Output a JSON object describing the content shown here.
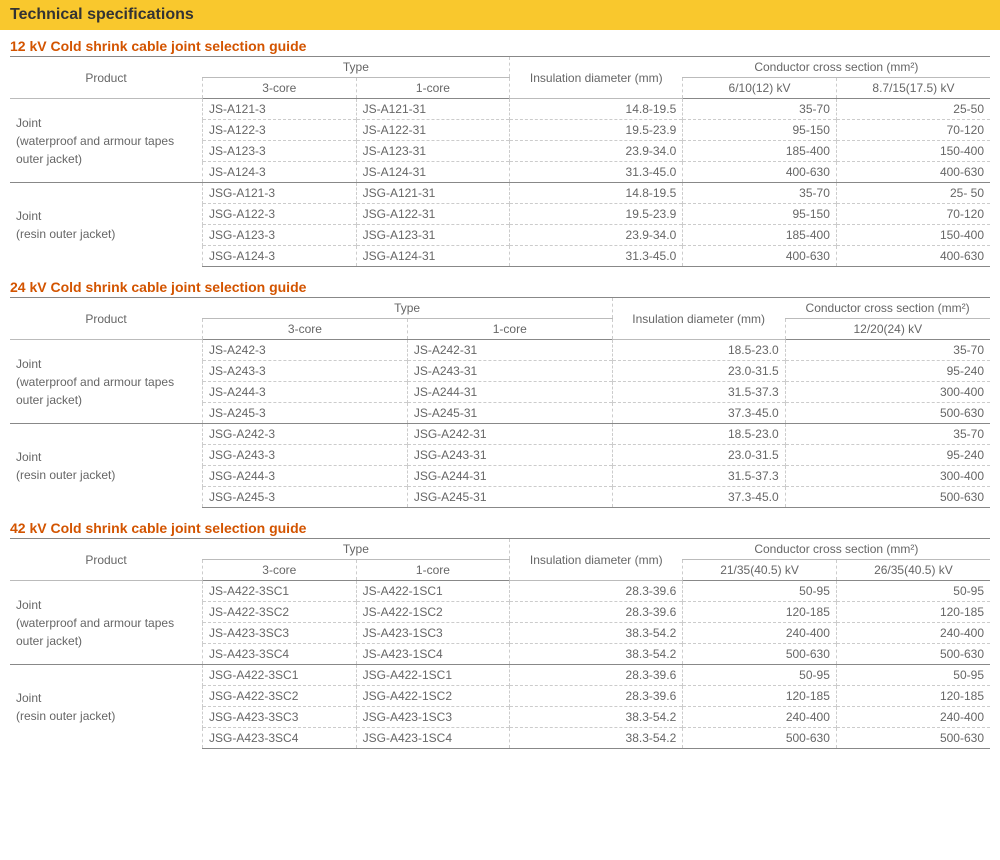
{
  "banner": "Technical specifications",
  "headers": {
    "product": "Product",
    "type": "Type",
    "core3": "3-core",
    "core1": "1-core",
    "insulation": "Insulation diameter (mm)",
    "cross": "Conductor cross section (mm²)"
  },
  "products": {
    "waterproof": "Joint<br>(waterproof and armour tapes outer jacket)",
    "resin": "Joint<br>(resin outer jacket)"
  },
  "t12": {
    "title": "12 kV Cold shrink cable joint selection guide",
    "cc1": "6/10(12) kV",
    "cc2": "8.7/15(17.5) kV",
    "groups": [
      {
        "product": "waterproof",
        "rows": [
          {
            "c3": "JS-A121-3",
            "c1": "JS-A121-31",
            "ins": "14.8-19.5",
            "a": "35-70",
            "b": "25-50"
          },
          {
            "c3": "JS-A122-3",
            "c1": "JS-A122-31",
            "ins": "19.5-23.9",
            "a": "95-150",
            "b": "70-120"
          },
          {
            "c3": "JS-A123-3",
            "c1": "JS-A123-31",
            "ins": "23.9-34.0",
            "a": "185-400",
            "b": "150-400"
          },
          {
            "c3": "JS-A124-3",
            "c1": "JS-A124-31",
            "ins": "31.3-45.0",
            "a": "400-630",
            "b": "400-630"
          }
        ]
      },
      {
        "product": "resin",
        "rows": [
          {
            "c3": "JSG-A121-3",
            "c1": "JSG-A121-31",
            "ins": "14.8-19.5",
            "a": "35-70",
            "b": "25- 50"
          },
          {
            "c3": "JSG-A122-3",
            "c1": "JSG-A122-31",
            "ins": "19.5-23.9",
            "a": "95-150",
            "b": "70-120"
          },
          {
            "c3": "JSG-A123-3",
            "c1": "JSG-A123-31",
            "ins": "23.9-34.0",
            "a": "185-400",
            "b": "150-400"
          },
          {
            "c3": "JSG-A124-3",
            "c1": "JSG-A124-31",
            "ins": "31.3-45.0",
            "a": "400-630",
            "b": "400-630"
          }
        ]
      }
    ]
  },
  "t24": {
    "title": "24 kV Cold shrink cable joint selection guide",
    "cc1": "12/20(24) kV",
    "groups": [
      {
        "product": "waterproof",
        "rows": [
          {
            "c3": "JS-A242-3",
            "c1": "JS-A242-31",
            "ins": "18.5-23.0",
            "a": "35-70"
          },
          {
            "c3": "JS-A243-3",
            "c1": "JS-A243-31",
            "ins": "23.0-31.5",
            "a": "95-240"
          },
          {
            "c3": "JS-A244-3",
            "c1": "JS-A244-31",
            "ins": "31.5-37.3",
            "a": "300-400"
          },
          {
            "c3": "JS-A245-3",
            "c1": "JS-A245-31",
            "ins": "37.3-45.0",
            "a": "500-630"
          }
        ]
      },
      {
        "product": "resin",
        "rows": [
          {
            "c3": "JSG-A242-3",
            "c1": "JSG-A242-31",
            "ins": "18.5-23.0",
            "a": "35-70"
          },
          {
            "c3": "JSG-A243-3",
            "c1": "JSG-A243-31",
            "ins": "23.0-31.5",
            "a": "95-240"
          },
          {
            "c3": "JSG-A244-3",
            "c1": "JSG-A244-31",
            "ins": "31.5-37.3",
            "a": "300-400"
          },
          {
            "c3": "JSG-A245-3",
            "c1": "JSG-A245-31",
            "ins": "37.3-45.0",
            "a": "500-630"
          }
        ]
      }
    ]
  },
  "t42": {
    "title": "42 kV Cold shrink cable joint selection guide",
    "cc1": "21/35(40.5) kV",
    "cc2": "26/35(40.5) kV",
    "groups": [
      {
        "product": "waterproof",
        "rows": [
          {
            "c3": "JS-A422-3SC1",
            "c1": "JS-A422-1SC1",
            "ins": "28.3-39.6",
            "a": "50-95",
            "b": "50-95"
          },
          {
            "c3": "JS-A422-3SC2",
            "c1": "JS-A422-1SC2",
            "ins": "28.3-39.6",
            "a": "120-185",
            "b": "120-185"
          },
          {
            "c3": "JS-A423-3SC3",
            "c1": "JS-A423-1SC3",
            "ins": "38.3-54.2",
            "a": "240-400",
            "b": "240-400"
          },
          {
            "c3": "JS-A423-3SC4",
            "c1": "JS-A423-1SC4",
            "ins": "38.3-54.2",
            "a": "500-630",
            "b": "500-630"
          }
        ]
      },
      {
        "product": "resin",
        "rows": [
          {
            "c3": "JSG-A422-3SC1",
            "c1": "JSG-A422-1SC1",
            "ins": "28.3-39.6",
            "a": "50-95",
            "b": "50-95"
          },
          {
            "c3": "JSG-A422-3SC2",
            "c1": "JSG-A422-1SC2",
            "ins": "28.3-39.6",
            "a": "120-185",
            "b": "120-185"
          },
          {
            "c3": "JSG-A423-3SC3",
            "c1": "JSG-A423-1SC3",
            "ins": "38.3-54.2",
            "a": "240-400",
            "b": "240-400"
          },
          {
            "c3": "JSG-A423-3SC4",
            "c1": "JSG-A423-1SC4",
            "ins": "38.3-54.2",
            "a": "500-630",
            "b": "500-630"
          }
        ]
      }
    ]
  }
}
